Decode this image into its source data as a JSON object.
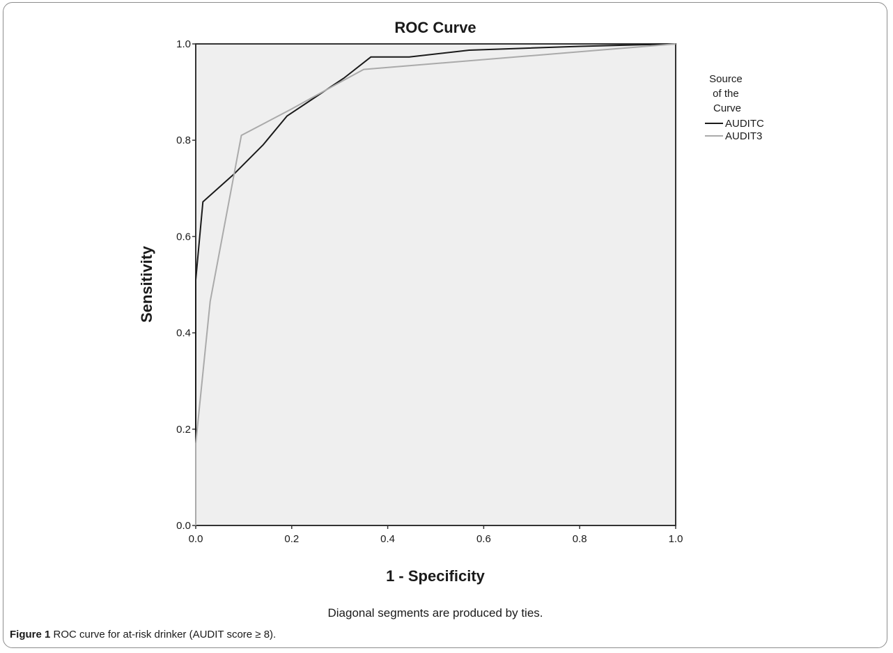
{
  "figure": {
    "caption_label": "Figure 1",
    "caption_text": "ROC curve for at-risk drinker (AUDIT score ≥ 8)."
  },
  "chart_data": {
    "type": "line",
    "title": "ROC Curve",
    "xlabel": "1 - Specificity",
    "ylabel": "Sensitivity",
    "xlim": [
      0,
      1
    ],
    "ylim": [
      0,
      1
    ],
    "x_ticks": [
      "0.0",
      "0.2",
      "0.4",
      "0.6",
      "0.8",
      "1.0"
    ],
    "y_ticks": [
      "0.0",
      "0.2",
      "0.4",
      "0.6",
      "0.8",
      "1.0"
    ],
    "grid": false,
    "legend_title": "Source of the Curve",
    "legend_position": "right",
    "note": "Diagonal segments are produced by ties.",
    "series": [
      {
        "name": "AUDITC",
        "color": "#1a1a1a",
        "x": [
          0,
          0,
          0.015,
          0.08,
          0.14,
          0.19,
          0.25,
          0.31,
          0.365,
          0.445,
          0.57,
          0.8,
          1.0
        ],
        "y": [
          0,
          0.51,
          0.672,
          0.73,
          0.79,
          0.85,
          0.89,
          0.93,
          0.973,
          0.973,
          0.987,
          0.995,
          1.0
        ]
      },
      {
        "name": "AUDIT3",
        "color": "#aaaaaa",
        "x": [
          0,
          0,
          0.03,
          0.095,
          0.2,
          0.3,
          0.35,
          1.0
        ],
        "y": [
          0,
          0.17,
          0.465,
          0.81,
          0.865,
          0.92,
          0.947,
          1.0
        ]
      }
    ]
  }
}
